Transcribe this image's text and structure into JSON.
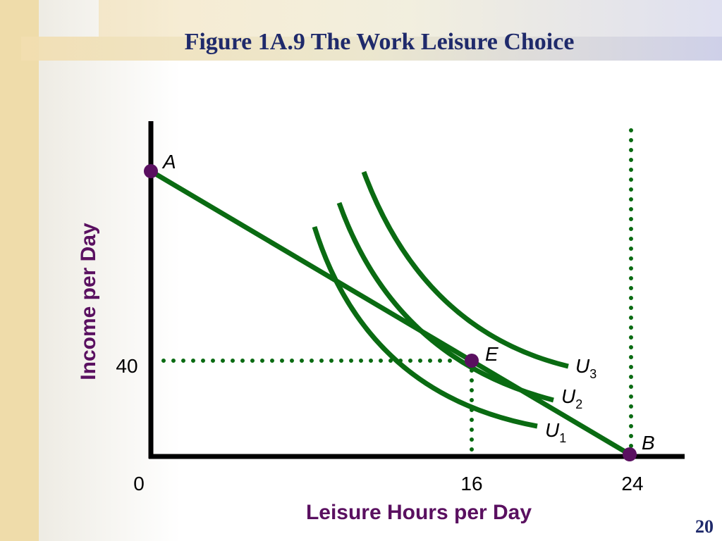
{
  "header": {
    "title": "Figure 1A.9 The Work Leisure Choice"
  },
  "axes": {
    "y_label": "Income per Day",
    "x_label": "Leisure Hours per Day",
    "x_ticks": [
      0,
      16,
      24
    ],
    "y_ticks": [
      40
    ]
  },
  "points": [
    {
      "label": "A"
    },
    {
      "label": "E"
    },
    {
      "label": "B"
    }
  ],
  "curves": [
    {
      "letter": "U",
      "subscript": "1"
    },
    {
      "letter": "U",
      "subscript": "2"
    },
    {
      "letter": "U",
      "subscript": "3"
    }
  ],
  "footer": {
    "page_number": 20
  }
}
